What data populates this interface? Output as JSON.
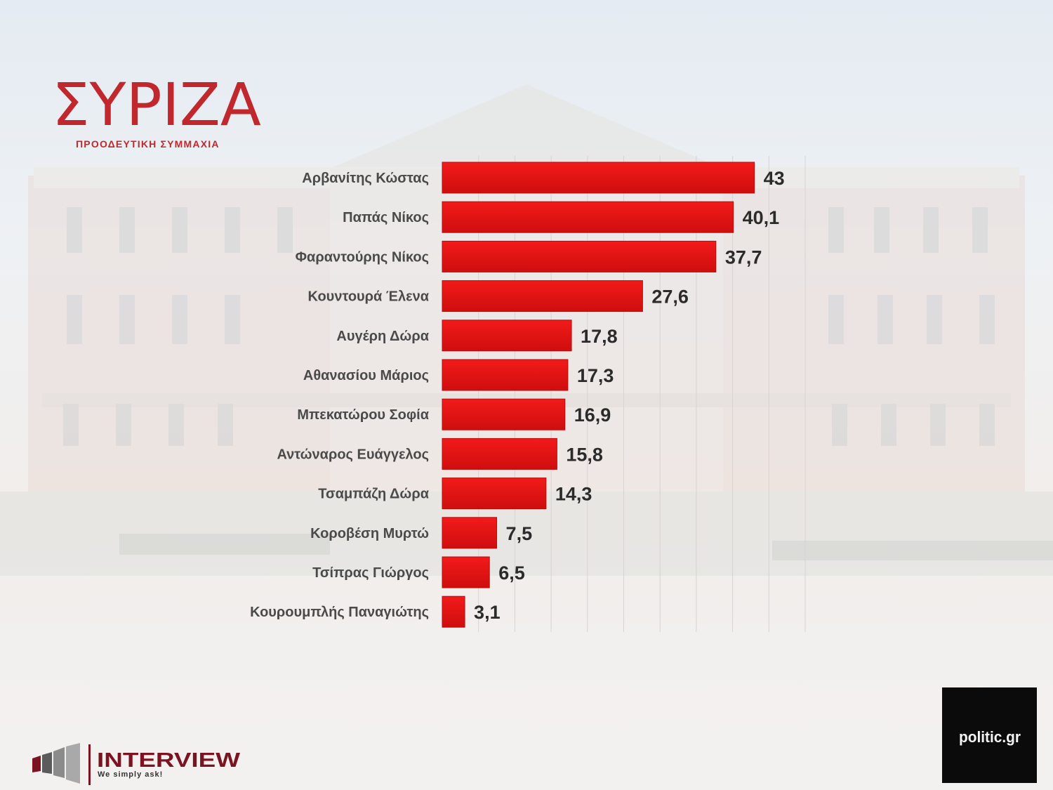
{
  "logo": {
    "brand": "ΣΥΡΙΖΑ",
    "tagline": "ΠΡΟΟΔΕΥΤΙΚΗ ΣΥΜΜΑΧΙΑ"
  },
  "footer": {
    "interview_name": "INTERVIEW",
    "interview_slogan": "We simply ask!",
    "politic_brand": "politic.gr"
  },
  "colors": {
    "bar": "#dd1111",
    "bar_light": "#f21a1a",
    "logo_red": "#c0282d"
  },
  "chart_data": {
    "type": "bar",
    "orientation": "horizontal",
    "categories": [
      "Αρβανίτης Κώστας",
      "Παπάς Νίκος",
      "Φαραντούρης Νίκος",
      "Κουντουρά Έλενα",
      "Αυγέρη Δώρα",
      "Αθανασίου Μάριος",
      "Μπεκατώρου Σοφία",
      "Αντώναρος Ευάγγελος",
      "Τσαμπάζη Δώρα",
      "Κοροβέση Μυρτώ",
      "Τσίπρας Γιώργος",
      "Κουρουμπλής Παναγιώτης"
    ],
    "values": [
      43,
      40.1,
      37.7,
      27.6,
      17.8,
      17.3,
      16.9,
      15.8,
      14.3,
      7.5,
      6.5,
      3.1
    ],
    "value_labels": [
      "43",
      "40,1",
      "37,7",
      "27,6",
      "17,8",
      "17,3",
      "16,9",
      "15,8",
      "14,3",
      "7,5",
      "6,5",
      "3,1"
    ],
    "title": "",
    "xlabel": "",
    "ylabel": "",
    "xlim": [
      0,
      50
    ],
    "grid": true,
    "legend": "none"
  }
}
